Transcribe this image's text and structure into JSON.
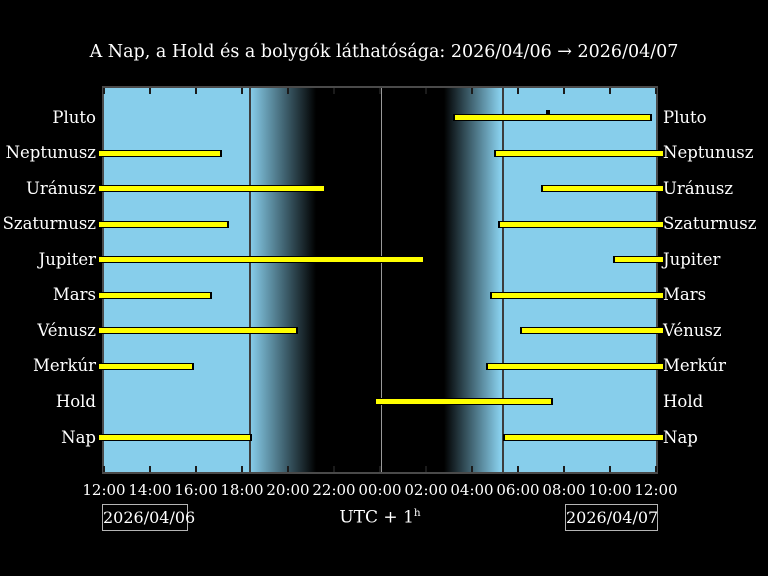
{
  "title": "A Nap, a Hold és a bolygók láthatósága: 2026/04/06 → 2026/04/07",
  "footer": {
    "left_date": "2026/04/06",
    "right_date": "2026/04/07",
    "utc_prefix": "UTC + 1",
    "utc_sup": "h"
  },
  "colors": {
    "background": "#000000",
    "day": "#87CEEB",
    "night": "#000000",
    "bar_fill": "#FFFF00",
    "bar_border": "#000000",
    "text": "#FFFFFF",
    "plot_border": "#4a4a4a",
    "terminator_line": "#3c3c3c",
    "midnight_line": "#999999",
    "tick": "#1b1b1b",
    "date_box_border": "#b5b5b5",
    "transit_marker": "#000000"
  },
  "chart_data": {
    "type": "bar",
    "subtype": "horizontal-visibility-intervals",
    "title": "A Nap, a Hold és a bolygók láthatósága: 2026/04/06 → 2026/04/07",
    "x_unit": "hours after 12:00 (UTC+1)",
    "x_range": [
      0,
      24
    ],
    "x_tick_step_h": 2,
    "x_tick_labels": [
      "12:00",
      "14:00",
      "16:00",
      "18:00",
      "20:00",
      "22:00",
      "00:00",
      "02:00",
      "04:00",
      "06:00",
      "08:00",
      "10:00",
      "12:00"
    ],
    "categories": [
      "Pluto",
      "Neptunusz",
      "Uránusz",
      "Szaturnusz",
      "Jupiter",
      "Mars",
      "Vénusz",
      "Merkúr",
      "Hold",
      "Nap"
    ],
    "bodies": [
      {
        "name": "Pluto",
        "segments_h": [
          [
            15.17,
            23.65
          ]
        ],
        "segments_clock": [
          [
            "03:10",
            "11:39"
          ]
        ],
        "transit_h": 19.3,
        "transit_clock": "07:18"
      },
      {
        "name": "Neptunusz",
        "segments_h": [
          [
            0,
            5.04
          ],
          [
            16.96,
            24
          ]
        ],
        "segments_clock": [
          [
            "12:00",
            "17:02"
          ],
          [
            "04:58",
            "12:00"
          ]
        ]
      },
      {
        "name": "Uránusz",
        "segments_h": [
          [
            0,
            9.57
          ],
          [
            19.0,
            24
          ]
        ],
        "segments_clock": [
          [
            "12:00",
            "21:34"
          ],
          [
            "07:00",
            "12:00"
          ]
        ]
      },
      {
        "name": "Szaturnusz",
        "segments_h": [
          [
            0,
            5.35
          ],
          [
            17.13,
            24
          ]
        ],
        "segments_clock": [
          [
            "12:00",
            "17:21"
          ],
          [
            "05:08",
            "12:00"
          ]
        ]
      },
      {
        "name": "Jupiter",
        "segments_h": [
          [
            0,
            13.87
          ],
          [
            22.13,
            24
          ]
        ],
        "segments_clock": [
          [
            "12:00",
            "01:52"
          ],
          [
            "10:08",
            "12:00"
          ]
        ]
      },
      {
        "name": "Mars",
        "segments_h": [
          [
            0,
            4.61
          ],
          [
            16.78,
            24
          ]
        ],
        "segments_clock": [
          [
            "12:00",
            "16:37"
          ],
          [
            "04:47",
            "12:00"
          ]
        ]
      },
      {
        "name": "Vénusz",
        "segments_h": [
          [
            0,
            8.35
          ],
          [
            18.09,
            24
          ]
        ],
        "segments_clock": [
          [
            "12:00",
            "20:21"
          ],
          [
            "06:05",
            "12:00"
          ]
        ]
      },
      {
        "name": "Merkúr",
        "segments_h": [
          [
            0,
            3.83
          ],
          [
            16.61,
            24
          ]
        ],
        "segments_clock": [
          [
            "12:00",
            "15:50"
          ],
          [
            "04:37",
            "12:00"
          ]
        ]
      },
      {
        "name": "Hold",
        "segments_h": [
          [
            11.74,
            19.35
          ]
        ],
        "segments_clock": [
          [
            "23:44",
            "07:21"
          ]
        ]
      },
      {
        "name": "Nap",
        "segments_h": [
          [
            0,
            6.35
          ],
          [
            17.35,
            24
          ]
        ],
        "segments_clock": [
          [
            "12:00",
            "18:21"
          ],
          [
            "05:21",
            "12:00"
          ]
        ]
      }
    ],
    "sky_bands_h": {
      "day_end": 6.35,
      "dusk_full_dark": 9.2,
      "night_end": 14.8,
      "dawn_full_light": 17.2
    },
    "lines_h": {
      "sunset": 6.35,
      "midnight": 12.09,
      "sunrise": 17.35
    },
    "legend_position": "none",
    "grid": false
  }
}
